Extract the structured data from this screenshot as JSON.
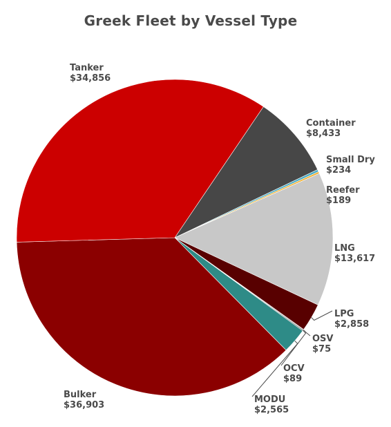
{
  "chart_data": {
    "type": "pie",
    "title": "Greek Fleet by Vessel Type",
    "slices": [
      {
        "name": "Container",
        "value": 8433,
        "label": "$8,433",
        "color": "#474747"
      },
      {
        "name": "Small Dry",
        "value": 234,
        "label": "$234",
        "color": "#4bacc6"
      },
      {
        "name": "Reefer",
        "value": 189,
        "label": "$189",
        "color": "#f2b233"
      },
      {
        "name": "LNG",
        "value": 13617,
        "label": "$13,617",
        "color": "#c8c8c8"
      },
      {
        "name": "LPG",
        "value": 2858,
        "label": "$2,858",
        "color": "#580000"
      },
      {
        "name": "OSV",
        "value": 75,
        "label": "$75",
        "color": "#7f7f7f"
      },
      {
        "name": "OCV",
        "value": 89,
        "label": "$89",
        "color": "#3a3a3a"
      },
      {
        "name": "MODU",
        "value": 2565,
        "label": "$2,565",
        "color": "#2e8b87"
      },
      {
        "name": "Bulker",
        "value": 36903,
        "label": "$36,903",
        "color": "#8b0000"
      },
      {
        "name": "Tanker",
        "value": 34856,
        "label": "$34,856",
        "color": "#cc0000"
      }
    ],
    "legend": "none"
  }
}
